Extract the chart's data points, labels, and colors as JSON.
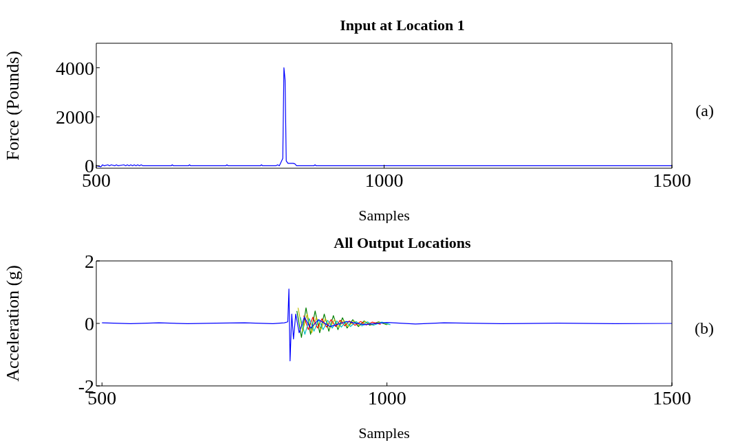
{
  "chart_data": [
    {
      "type": "line",
      "title": "Input at Location 1",
      "xlabel": "Samples",
      "ylabel": "Force (Pounds)",
      "annotations": [
        "(a)"
      ],
      "xlim": [
        500,
        1500
      ],
      "xticks": [
        500,
        1000,
        1500
      ],
      "ylim": [
        -100,
        5000
      ],
      "yticks": [
        0,
        2000,
        4000
      ],
      "grid": false,
      "legend": false,
      "x": [
        500,
        508,
        511,
        514,
        520,
        523,
        526,
        532,
        535,
        538,
        548,
        551,
        554,
        557,
        560,
        563,
        566,
        569,
        572,
        575,
        578,
        581,
        630,
        632,
        634,
        660,
        662,
        664,
        725,
        727,
        729,
        785,
        787,
        789,
        812,
        815,
        818,
        824,
        826,
        828,
        830,
        833,
        838,
        842,
        845,
        848,
        878,
        880,
        882,
        1000,
        1500
      ],
      "series": [
        {
          "color": "#0000ff",
          "values": [
            0,
            -40,
            40,
            0,
            40,
            0,
            40,
            0,
            40,
            0,
            40,
            0,
            40,
            0,
            40,
            0,
            40,
            0,
            40,
            0,
            40,
            0,
            0,
            40,
            0,
            0,
            40,
            0,
            0,
            40,
            0,
            0,
            40,
            0,
            0,
            40,
            0,
            300,
            4000,
            3500,
            200,
            100,
            100,
            100,
            80,
            0,
            0,
            40,
            0,
            0,
            0
          ]
        }
      ]
    },
    {
      "type": "line",
      "title": "All Output Locations",
      "xlabel": "Samples",
      "ylabel": "Acceleration (g)",
      "annotations": [
        "(b)"
      ],
      "xlim": [
        490,
        1500
      ],
      "xticks": [
        500,
        1000,
        1500
      ],
      "ylim": [
        -2,
        2
      ],
      "yticks": [
        -2,
        0,
        2
      ],
      "grid": false,
      "legend": false,
      "series": [
        {
          "color": "#008000",
          "x": [
            842,
            850,
            858,
            866,
            874,
            882,
            890,
            898,
            906,
            914,
            922,
            930,
            940,
            950,
            960,
            970,
            985,
            1000
          ],
          "values": [
            0.4,
            -0.45,
            0.5,
            -0.35,
            0.4,
            -0.3,
            0.3,
            -0.25,
            0.25,
            -0.2,
            0.18,
            -0.15,
            0.12,
            -0.1,
            0.08,
            -0.06,
            0.05,
            -0.04
          ]
        },
        {
          "color": "#bfbf00",
          "x": [
            844,
            852,
            860,
            868,
            876,
            884,
            892,
            900,
            908,
            916,
            924,
            932,
            942,
            952,
            962,
            972,
            987,
            1002
          ],
          "values": [
            0.5,
            -0.25,
            0.3,
            -0.3,
            0.2,
            -0.2,
            0.15,
            -0.15,
            0.12,
            -0.12,
            0.1,
            -0.1,
            0.08,
            -0.07,
            0.06,
            -0.05,
            0.04,
            -0.03
          ]
        },
        {
          "color": "#ff0000",
          "x": [
            854,
            862,
            870,
            878,
            886,
            894,
            902,
            910,
            918,
            926,
            934,
            944,
            954,
            964,
            974,
            989
          ],
          "values": [
            0.25,
            -0.2,
            0.2,
            -0.15,
            0.15,
            -0.12,
            0.12,
            -0.1,
            0.1,
            -0.08,
            0.08,
            -0.06,
            0.06,
            -0.05,
            0.04,
            -0.03
          ]
        },
        {
          "color": "#00bfbf",
          "x": [
            848,
            856,
            864,
            872,
            880,
            888,
            896,
            904,
            912,
            920,
            928,
            936,
            946,
            956,
            966,
            976,
            991,
            1006
          ],
          "values": [
            0.2,
            -0.35,
            0.15,
            -0.25,
            0.12,
            -0.2,
            0.1,
            -0.15,
            0.08,
            -0.12,
            0.07,
            -0.1,
            0.06,
            -0.08,
            0.05,
            -0.06,
            0.04,
            -0.04
          ]
        },
        {
          "color": "#0000ff",
          "x": [
            500,
            550,
            600,
            650,
            700,
            750,
            800,
            820,
            826,
            828,
            830,
            833,
            836,
            840,
            846,
            855,
            866,
            880,
            900,
            930,
            960,
            1000,
            1050,
            1100,
            1200,
            1300,
            1400,
            1500
          ],
          "values": [
            0.02,
            -0.01,
            0.02,
            -0.01,
            0.01,
            0.02,
            -0.01,
            0.02,
            0.05,
            1.1,
            -1.2,
            0.3,
            -0.5,
            0.3,
            -0.3,
            0.2,
            -0.15,
            0.12,
            -0.1,
            0.06,
            -0.04,
            0.03,
            -0.02,
            0.02,
            -0.01,
            0.01,
            -0.01,
            0
          ]
        }
      ]
    }
  ]
}
